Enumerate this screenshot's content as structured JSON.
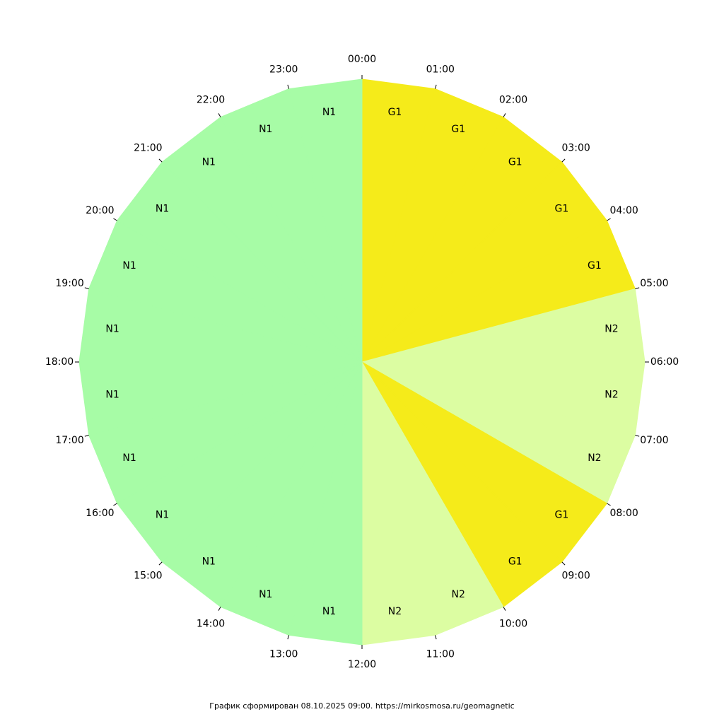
{
  "chart_data": {
    "type": "pie",
    "hour_labels": [
      "00:00",
      "01:00",
      "02:00",
      "03:00",
      "04:00",
      "05:00",
      "06:00",
      "07:00",
      "08:00",
      "09:00",
      "10:00",
      "11:00",
      "12:00",
      "13:00",
      "14:00",
      "15:00",
      "16:00",
      "17:00",
      "18:00",
      "19:00",
      "20:00",
      "21:00",
      "22:00",
      "23:00"
    ],
    "segments": [
      {
        "level": "G1",
        "color": "#f5eb1a"
      },
      {
        "level": "G1",
        "color": "#f5eb1a"
      },
      {
        "level": "G1",
        "color": "#f5eb1a"
      },
      {
        "level": "G1",
        "color": "#f5eb1a"
      },
      {
        "level": "G1",
        "color": "#f5eb1a"
      },
      {
        "level": "N2",
        "color": "#dcfda2"
      },
      {
        "level": "N2",
        "color": "#dcfda2"
      },
      {
        "level": "N2",
        "color": "#dcfda2"
      },
      {
        "level": "G1",
        "color": "#f5eb1a"
      },
      {
        "level": "G1",
        "color": "#f5eb1a"
      },
      {
        "level": "N2",
        "color": "#dcfda2"
      },
      {
        "level": "N2",
        "color": "#dcfda2"
      },
      {
        "level": "N1",
        "color": "#a7fca6"
      },
      {
        "level": "N1",
        "color": "#a7fca6"
      },
      {
        "level": "N1",
        "color": "#a7fca6"
      },
      {
        "level": "N1",
        "color": "#a7fca6"
      },
      {
        "level": "N1",
        "color": "#a7fca6"
      },
      {
        "level": "N1",
        "color": "#a7fca6"
      },
      {
        "level": "N1",
        "color": "#a7fca6"
      },
      {
        "level": "N1",
        "color": "#a7fca6"
      },
      {
        "level": "N1",
        "color": "#a7fca6"
      },
      {
        "level": "N1",
        "color": "#a7fca6"
      },
      {
        "level": "N1",
        "color": "#a7fca6"
      },
      {
        "level": "N1",
        "color": "#a7fca6"
      }
    ]
  },
  "footer": "График сформирован 08.10.2025 09:00. https://mirkosmosa.ru/geomagnetic"
}
